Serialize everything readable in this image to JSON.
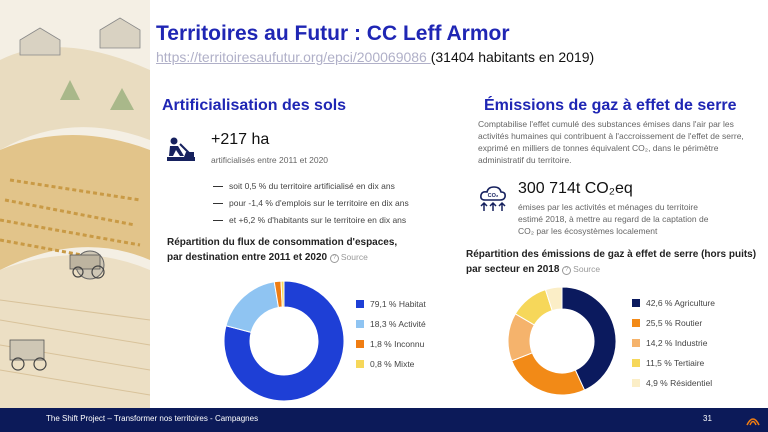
{
  "header": {
    "title": "Territoires au Futur : CC Leff Armor",
    "link": "https://territoiresaufutur.org/epci/200069086 ",
    "subtitle_rest": "(31404 habitants en 2019)"
  },
  "left_panel": {
    "title": "Artificialisation des sols",
    "icon": "construction-worker-icon",
    "value": "+217 ha",
    "value_caption": "artificialisés entre 2011 et 2020",
    "bullets": [
      "soit 0,5 % du territoire artificialisé en dix ans",
      "pour -1,4 % d'emplois sur le territoire en dix ans",
      "et +6,2 % d'habitants sur le territoire en dix ans"
    ],
    "chart_title_line1": "Répartition du flux de consommation d'espaces,",
    "chart_title_line2": "par destination entre 2011 et 2020",
    "source_label": "Source"
  },
  "right_panel": {
    "title": "Émissions de gaz à effet de serre",
    "description": "Comptabilise l'effet cumulé des substances émises dans l'air par les activités humaines qui contribuent à l'accroissement de l'effet de serre, exprimé en milliers de tonnes équivalent CO₂, dans le périmètre administratif du territoire.",
    "icon": "co2-cloud-icon",
    "value": "300 714t CO₂eq",
    "value_caption_1": "émises par les activités et ménages du territoire",
    "value_caption_2": "estimé 2018, à mettre au regard de la captation de",
    "value_caption_3": "CO₂ par les écosystèmes localement",
    "chart_title_line1": "Répartition des émissions de gaz à effet de serre (hors puits)",
    "chart_title_line2": "par secteur en 2018",
    "source_label": "Source"
  },
  "chart_data": [
    {
      "type": "pie",
      "categories": [
        "Habitat",
        "Activité",
        "Inconnu",
        "Mixte"
      ],
      "values": [
        79.1,
        18.3,
        1.8,
        0.8
      ],
      "labels": [
        "79,1 % Habitat",
        "18,3 % Activité",
        "1,8 % Inconnu",
        "0,8 % Mixte"
      ],
      "colors": [
        "#1e3fd6",
        "#8fc4f2",
        "#f07d12",
        "#f6d75a"
      ]
    },
    {
      "type": "pie",
      "categories": [
        "Agriculture",
        "Routier",
        "Industrie",
        "Tertiaire",
        "Résidentiel"
      ],
      "values": [
        42.6,
        25.5,
        14.2,
        11.5,
        4.9
      ],
      "labels": [
        "42,6 % Agriculture",
        "25,5 % Routier",
        "14,2 % Industrie",
        "11,5 % Tertiaire",
        "4,9 % Résidentiel"
      ],
      "colors": [
        "#0b1a5e",
        "#f28a17",
        "#f5b36c",
        "#f6d75a",
        "#fbeec7"
      ]
    }
  ],
  "footer": {
    "text": "The Shift Project – Transformer nos territoires - Campagnes",
    "page": "31"
  }
}
